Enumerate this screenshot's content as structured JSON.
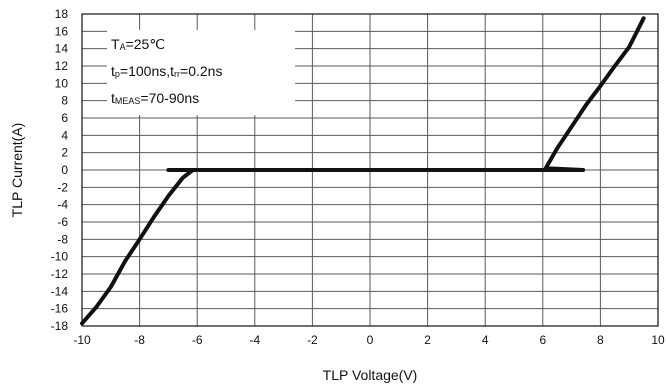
{
  "chart_data": {
    "type": "line",
    "xlabel": "TLP Voltage(V)",
    "ylabel": "TLP  Current(A)",
    "xlim": [
      -10,
      10
    ],
    "ylim": [
      -18,
      18
    ],
    "x_ticks": [
      -10,
      -8,
      -6,
      -4,
      -2,
      0,
      2,
      4,
      6,
      8,
      10
    ],
    "y_ticks": [
      18,
      16,
      14,
      12,
      10,
      8,
      6,
      4,
      2,
      0,
      -2,
      -4,
      -6,
      -8,
      -10,
      -12,
      -14,
      -16,
      -18
    ],
    "grid": true,
    "annotations": {
      "ta": {
        "symbol": "T",
        "sub": "A",
        "rest": "=25℃"
      },
      "tp": {
        "sym1": "t",
        "sub1": "p",
        "mid": "=100ns,t",
        "sub2": "rr",
        "rest": "=0.2ns"
      },
      "tmeas": {
        "symbol": "t",
        "sub": "MEAS",
        "rest": "=70-90ns"
      }
    },
    "series": [
      {
        "points": [
          [
            -10,
            -17.7
          ],
          [
            -9.5,
            -15.8
          ],
          [
            -9,
            -13.5
          ],
          [
            -8.5,
            -10.5
          ],
          [
            -8,
            -8
          ],
          [
            -7.5,
            -5.4
          ],
          [
            -7,
            -3
          ],
          [
            -6.5,
            -0.9
          ],
          [
            -6.15,
            0
          ],
          [
            -7.0,
            0
          ],
          [
            -3,
            0
          ],
          [
            0,
            0
          ],
          [
            3,
            0
          ],
          [
            6,
            0
          ],
          [
            7.4,
            0
          ],
          [
            6.1,
            0.2
          ],
          [
            6.5,
            2.5
          ],
          [
            7,
            5
          ],
          [
            7.5,
            7.5
          ],
          [
            8,
            9.7
          ],
          [
            8.5,
            12
          ],
          [
            9,
            14.2
          ],
          [
            9.5,
            17.5
          ]
        ]
      }
    ]
  },
  "colors": {
    "line": "#111111",
    "grid": "#5a5a5a",
    "axis": "#111111"
  }
}
